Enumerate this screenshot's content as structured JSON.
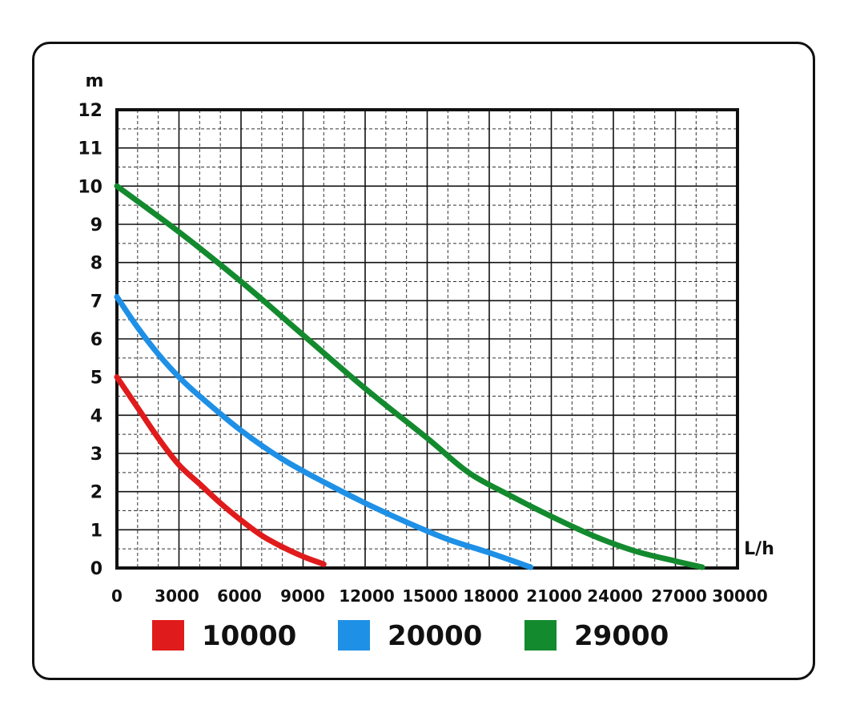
{
  "chart_data": {
    "type": "line",
    "title": "",
    "xlabel": "L/h",
    "ylabel": "m",
    "xlim": [
      0,
      30000
    ],
    "ylim": [
      0,
      12
    ],
    "x_ticks": [
      "0",
      "3000",
      "6000",
      "9000",
      "12000",
      "15000",
      "18000",
      "21000",
      "24000",
      "27000",
      "30000"
    ],
    "y_ticks": [
      "0",
      "1",
      "2",
      "3",
      "4",
      "5",
      "6",
      "7",
      "8",
      "9",
      "10",
      "11",
      "12"
    ],
    "grid": true,
    "legend_position": "bottom",
    "series": [
      {
        "name": "10000",
        "color": "#e01b1b",
        "points": [
          [
            0,
            5
          ],
          [
            1000,
            4.2
          ],
          [
            2000,
            3.4
          ],
          [
            3000,
            2.7
          ],
          [
            4000,
            2.2
          ],
          [
            5000,
            1.7
          ],
          [
            6000,
            1.25
          ],
          [
            7000,
            0.85
          ],
          [
            8000,
            0.55
          ],
          [
            9000,
            0.3
          ],
          [
            10000,
            0.1
          ]
        ]
      },
      {
        "name": "20000",
        "color": "#1e90e6",
        "points": [
          [
            0,
            7.1
          ],
          [
            1000,
            6.3
          ],
          [
            2000,
            5.6
          ],
          [
            3000,
            5.0
          ],
          [
            4000,
            4.5
          ],
          [
            6000,
            3.6
          ],
          [
            8000,
            2.85
          ],
          [
            10000,
            2.25
          ],
          [
            12000,
            1.7
          ],
          [
            14000,
            1.2
          ],
          [
            16000,
            0.75
          ],
          [
            18000,
            0.4
          ],
          [
            20000,
            0.02
          ]
        ]
      },
      {
        "name": "29000",
        "color": "#138a2e",
        "points": [
          [
            0,
            10
          ],
          [
            3000,
            8.8
          ],
          [
            6000,
            7.5
          ],
          [
            9000,
            6.1
          ],
          [
            12000,
            4.7
          ],
          [
            15000,
            3.4
          ],
          [
            17000,
            2.5
          ],
          [
            19000,
            1.9
          ],
          [
            21000,
            1.35
          ],
          [
            23000,
            0.85
          ],
          [
            25000,
            0.45
          ],
          [
            27000,
            0.18
          ],
          [
            28300,
            0.02
          ]
        ]
      }
    ]
  }
}
